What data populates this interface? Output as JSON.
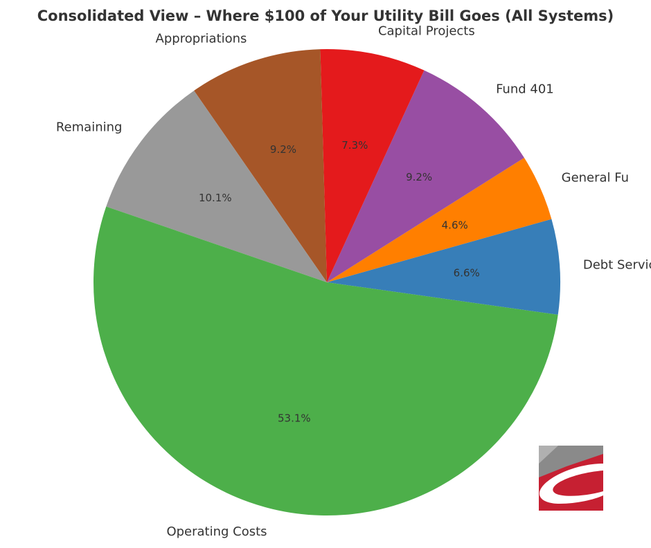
{
  "chart_data": {
    "type": "pie",
    "title": "Consolidated View – Where $100 of Your Utility Bill Goes (All Systems)",
    "categories": [
      "Debt Service",
      "General Fund",
      "Fund 401",
      "Capital Projects",
      "Appropriations",
      "Remaining",
      "Operating Costs"
    ],
    "values": [
      6.6,
      4.6,
      9.2,
      7.3,
      9.2,
      10.1,
      53.1
    ],
    "labels": [
      "Debt Servic",
      "General Fu",
      "Fund 401",
      "Capital Projects",
      "Appropriations",
      "Remaining",
      "Operating Costs"
    ],
    "value_labels": [
      "6.6%",
      "4.6%",
      "9.2%",
      "7.3%",
      "9.2%",
      "10.1%",
      "53.1%"
    ],
    "colors": [
      "#377eb8",
      "#ff7f00",
      "#984ea3",
      "#e41a1c",
      "#a65628",
      "#999999",
      "#4daf4a"
    ],
    "start_angle_deg": -8,
    "direction": "counterclockwise"
  },
  "logo": {
    "name": "company-logo",
    "colors": [
      "#c62032",
      "#8a8a8a",
      "#ffffff"
    ]
  }
}
